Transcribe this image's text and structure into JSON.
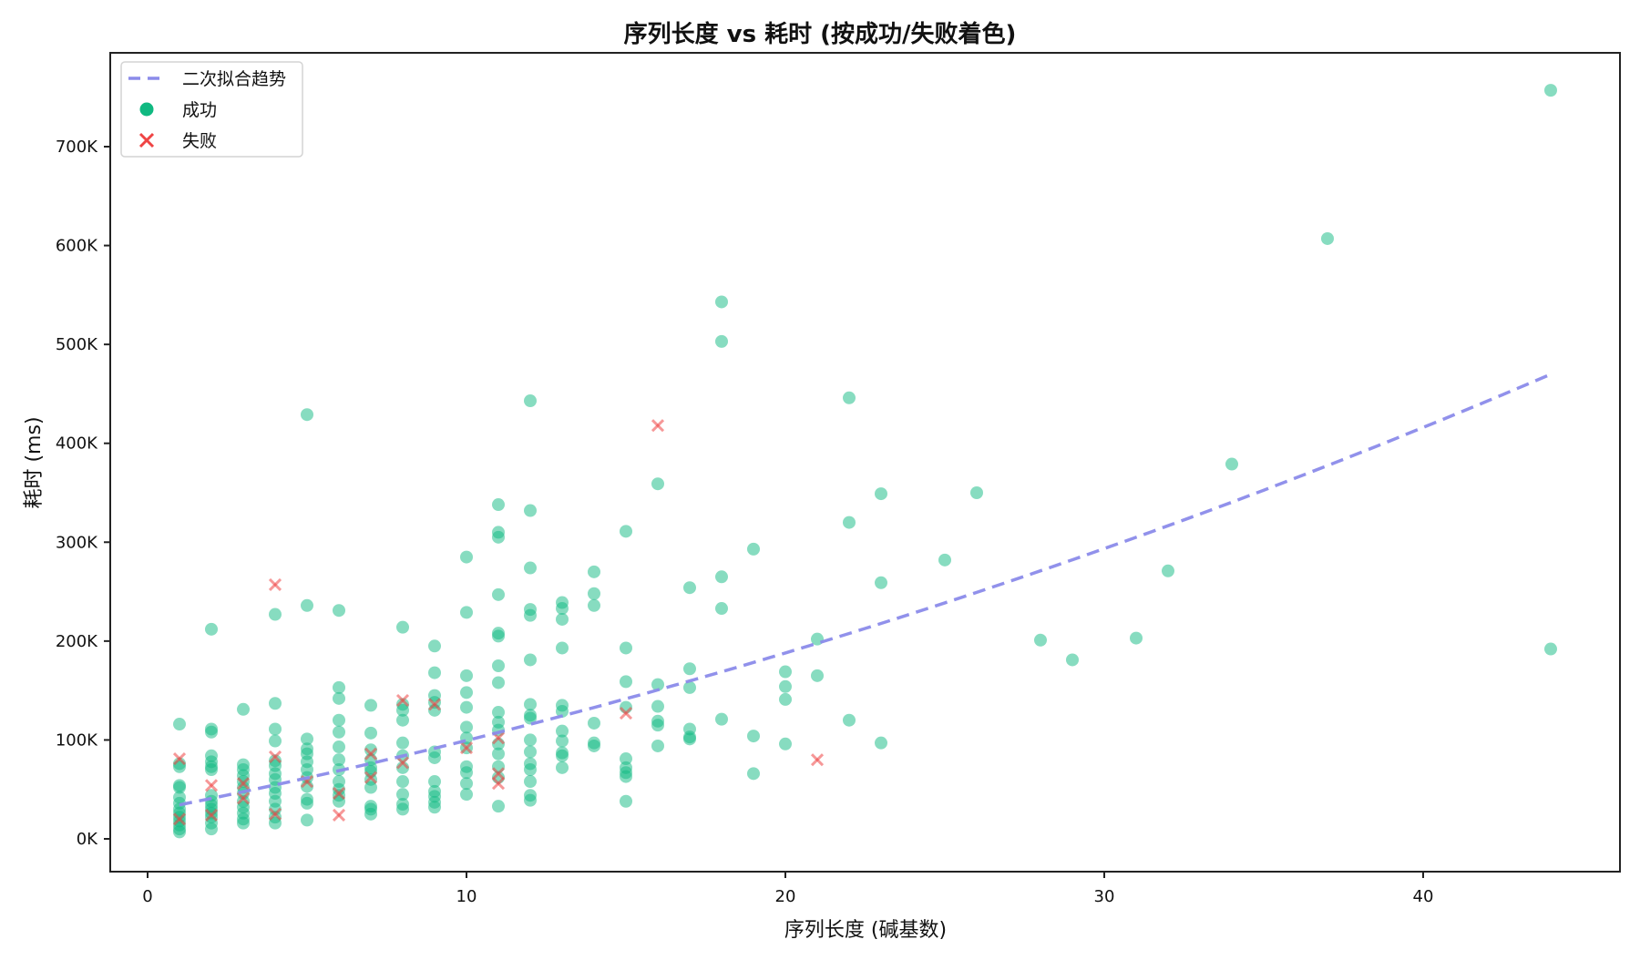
{
  "chart_data": {
    "type": "scatter",
    "title": "序列长度 vs 耗时 (按成功/失败着色)",
    "xlabel": "序列长度 (碱基数)",
    "ylabel": "耗时 (ms)",
    "xlim": [
      -1.2,
      46.2
    ],
    "ylim": [
      -32000,
      790000
    ],
    "xticks": [
      0,
      10,
      20,
      30,
      40
    ],
    "yticks": [
      0,
      100000,
      200000,
      300000,
      400000,
      500000,
      600000,
      700000
    ],
    "ytick_labels": [
      "0K",
      "100K",
      "200K",
      "300K",
      "400K",
      "500K",
      "600K",
      "700K"
    ],
    "grid": false,
    "legend_position": "upper left",
    "colors": {
      "success": "#10b981",
      "failure": "#ef4444",
      "trend": "#8b8bea"
    },
    "legend": [
      {
        "label": "二次拟合趋势",
        "kind": "dashed-line"
      },
      {
        "label": "成功",
        "kind": "circle"
      },
      {
        "label": "失败",
        "kind": "x"
      }
    ],
    "trend": {
      "name": "二次拟合趋势",
      "x_range": [
        1,
        44
      ],
      "coefficients": {
        "a": 85,
        "b": 6300,
        "c": 28000
      }
    },
    "series": [
      {
        "name": "成功",
        "points": [
          [
            1,
            116000
          ],
          [
            1,
            76000
          ],
          [
            1,
            73000
          ],
          [
            1,
            54000
          ],
          [
            1,
            52000
          ],
          [
            1,
            42000
          ],
          [
            1,
            36000
          ],
          [
            1,
            30000
          ],
          [
            1,
            26000
          ],
          [
            1,
            22000
          ],
          [
            1,
            18000
          ],
          [
            1,
            14000
          ],
          [
            1,
            10000
          ],
          [
            1,
            7000
          ],
          [
            2,
            212000
          ],
          [
            2,
            111000
          ],
          [
            2,
            108000
          ],
          [
            2,
            84000
          ],
          [
            2,
            78000
          ],
          [
            2,
            73000
          ],
          [
            2,
            70000
          ],
          [
            2,
            44000
          ],
          [
            2,
            38000
          ],
          [
            2,
            34000
          ],
          [
            2,
            30000
          ],
          [
            2,
            26000
          ],
          [
            2,
            22000
          ],
          [
            2,
            16000
          ],
          [
            2,
            10000
          ],
          [
            3,
            131000
          ],
          [
            3,
            75000
          ],
          [
            3,
            70000
          ],
          [
            3,
            64000
          ],
          [
            3,
            58000
          ],
          [
            3,
            52000
          ],
          [
            3,
            46000
          ],
          [
            3,
            38000
          ],
          [
            3,
            32000
          ],
          [
            3,
            26000
          ],
          [
            3,
            20000
          ],
          [
            3,
            16000
          ],
          [
            4,
            227000
          ],
          [
            4,
            137000
          ],
          [
            4,
            111000
          ],
          [
            4,
            99000
          ],
          [
            4,
            79000
          ],
          [
            4,
            74000
          ],
          [
            4,
            66000
          ],
          [
            4,
            60000
          ],
          [
            4,
            52000
          ],
          [
            4,
            46000
          ],
          [
            4,
            38000
          ],
          [
            4,
            30000
          ],
          [
            4,
            22000
          ],
          [
            4,
            16000
          ],
          [
            5,
            429000
          ],
          [
            5,
            236000
          ],
          [
            5,
            101000
          ],
          [
            5,
            91000
          ],
          [
            5,
            86000
          ],
          [
            5,
            78000
          ],
          [
            5,
            70000
          ],
          [
            5,
            62000
          ],
          [
            5,
            53000
          ],
          [
            5,
            40000
          ],
          [
            5,
            36000
          ],
          [
            5,
            19000
          ],
          [
            6,
            231000
          ],
          [
            6,
            153000
          ],
          [
            6,
            142000
          ],
          [
            6,
            120000
          ],
          [
            6,
            108000
          ],
          [
            6,
            93000
          ],
          [
            6,
            80000
          ],
          [
            6,
            70000
          ],
          [
            6,
            58000
          ],
          [
            6,
            50000
          ],
          [
            6,
            44000
          ],
          [
            6,
            38000
          ],
          [
            7,
            135000
          ],
          [
            7,
            107000
          ],
          [
            7,
            90000
          ],
          [
            7,
            80000
          ],
          [
            7,
            72000
          ],
          [
            7,
            68000
          ],
          [
            7,
            60000
          ],
          [
            7,
            52000
          ],
          [
            7,
            33000
          ],
          [
            7,
            30000
          ],
          [
            7,
            25000
          ],
          [
            8,
            214000
          ],
          [
            8,
            136000
          ],
          [
            8,
            130000
          ],
          [
            8,
            120000
          ],
          [
            8,
            97000
          ],
          [
            8,
            84000
          ],
          [
            8,
            72000
          ],
          [
            8,
            58000
          ],
          [
            8,
            45000
          ],
          [
            8,
            35000
          ],
          [
            8,
            30000
          ],
          [
            9,
            195000
          ],
          [
            9,
            168000
          ],
          [
            9,
            145000
          ],
          [
            9,
            138000
          ],
          [
            9,
            130000
          ],
          [
            9,
            88000
          ],
          [
            9,
            82000
          ],
          [
            9,
            58000
          ],
          [
            9,
            48000
          ],
          [
            9,
            43000
          ],
          [
            9,
            37000
          ],
          [
            9,
            32000
          ],
          [
            10,
            285000
          ],
          [
            10,
            229000
          ],
          [
            10,
            165000
          ],
          [
            10,
            148000
          ],
          [
            10,
            133000
          ],
          [
            10,
            113000
          ],
          [
            10,
            102000
          ],
          [
            10,
            92000
          ],
          [
            10,
            73000
          ],
          [
            10,
            67000
          ],
          [
            10,
            56000
          ],
          [
            10,
            45000
          ],
          [
            11,
            338000
          ],
          [
            11,
            310000
          ],
          [
            11,
            305000
          ],
          [
            11,
            247000
          ],
          [
            11,
            208000
          ],
          [
            11,
            205000
          ],
          [
            11,
            175000
          ],
          [
            11,
            158000
          ],
          [
            11,
            128000
          ],
          [
            11,
            118000
          ],
          [
            11,
            110000
          ],
          [
            11,
            96000
          ],
          [
            11,
            86000
          ],
          [
            11,
            73000
          ],
          [
            11,
            62000
          ],
          [
            11,
            33000
          ],
          [
            12,
            443000
          ],
          [
            12,
            332000
          ],
          [
            12,
            274000
          ],
          [
            12,
            232000
          ],
          [
            12,
            226000
          ],
          [
            12,
            181000
          ],
          [
            12,
            136000
          ],
          [
            12,
            125000
          ],
          [
            12,
            122000
          ],
          [
            12,
            100000
          ],
          [
            12,
            88000
          ],
          [
            12,
            76000
          ],
          [
            12,
            70000
          ],
          [
            12,
            58000
          ],
          [
            12,
            44000
          ],
          [
            12,
            39000
          ],
          [
            13,
            239000
          ],
          [
            13,
            233000
          ],
          [
            13,
            222000
          ],
          [
            13,
            193000
          ],
          [
            13,
            135000
          ],
          [
            13,
            129000
          ],
          [
            13,
            109000
          ],
          [
            13,
            99000
          ],
          [
            13,
            87000
          ],
          [
            13,
            84000
          ],
          [
            13,
            72000
          ],
          [
            14,
            270000
          ],
          [
            14,
            248000
          ],
          [
            14,
            236000
          ],
          [
            14,
            117000
          ],
          [
            14,
            97000
          ],
          [
            14,
            94000
          ],
          [
            15,
            311000
          ],
          [
            15,
            193000
          ],
          [
            15,
            159000
          ],
          [
            15,
            133000
          ],
          [
            15,
            81000
          ],
          [
            15,
            72000
          ],
          [
            15,
            67000
          ],
          [
            15,
            63000
          ],
          [
            15,
            38000
          ],
          [
            16,
            359000
          ],
          [
            16,
            156000
          ],
          [
            16,
            134000
          ],
          [
            16,
            119000
          ],
          [
            16,
            115000
          ],
          [
            16,
            94000
          ],
          [
            17,
            254000
          ],
          [
            17,
            172000
          ],
          [
            17,
            153000
          ],
          [
            17,
            111000
          ],
          [
            17,
            103000
          ],
          [
            17,
            101000
          ],
          [
            18,
            543000
          ],
          [
            18,
            503000
          ],
          [
            18,
            265000
          ],
          [
            18,
            233000
          ],
          [
            18,
            121000
          ],
          [
            19,
            293000
          ],
          [
            19,
            104000
          ],
          [
            19,
            66000
          ],
          [
            20,
            169000
          ],
          [
            20,
            154000
          ],
          [
            20,
            141000
          ],
          [
            20,
            96000
          ],
          [
            21,
            202000
          ],
          [
            21,
            165000
          ],
          [
            22,
            446000
          ],
          [
            22,
            320000
          ],
          [
            22,
            120000
          ],
          [
            23,
            349000
          ],
          [
            23,
            259000
          ],
          [
            23,
            97000
          ],
          [
            25,
            282000
          ],
          [
            26,
            350000
          ],
          [
            28,
            201000
          ],
          [
            29,
            181000
          ],
          [
            31,
            203000
          ],
          [
            32,
            271000
          ],
          [
            34,
            379000
          ],
          [
            37,
            607000
          ],
          [
            44,
            757000
          ],
          [
            44,
            192000
          ]
        ]
      },
      {
        "name": "失败",
        "points": [
          [
            1,
            81000
          ],
          [
            1,
            20000
          ],
          [
            2,
            54000
          ],
          [
            2,
            24000
          ],
          [
            3,
            56000
          ],
          [
            3,
            41000
          ],
          [
            4,
            257000
          ],
          [
            4,
            83000
          ],
          [
            4,
            25000
          ],
          [
            5,
            58000
          ],
          [
            6,
            24000
          ],
          [
            6,
            46000
          ],
          [
            7,
            86000
          ],
          [
            7,
            62000
          ],
          [
            8,
            140000
          ],
          [
            8,
            77000
          ],
          [
            9,
            136000
          ],
          [
            10,
            92000
          ],
          [
            11,
            102000
          ],
          [
            11,
            66000
          ],
          [
            11,
            56000
          ],
          [
            15,
            127000
          ],
          [
            16,
            418000
          ],
          [
            21,
            80000
          ]
        ]
      }
    ]
  }
}
